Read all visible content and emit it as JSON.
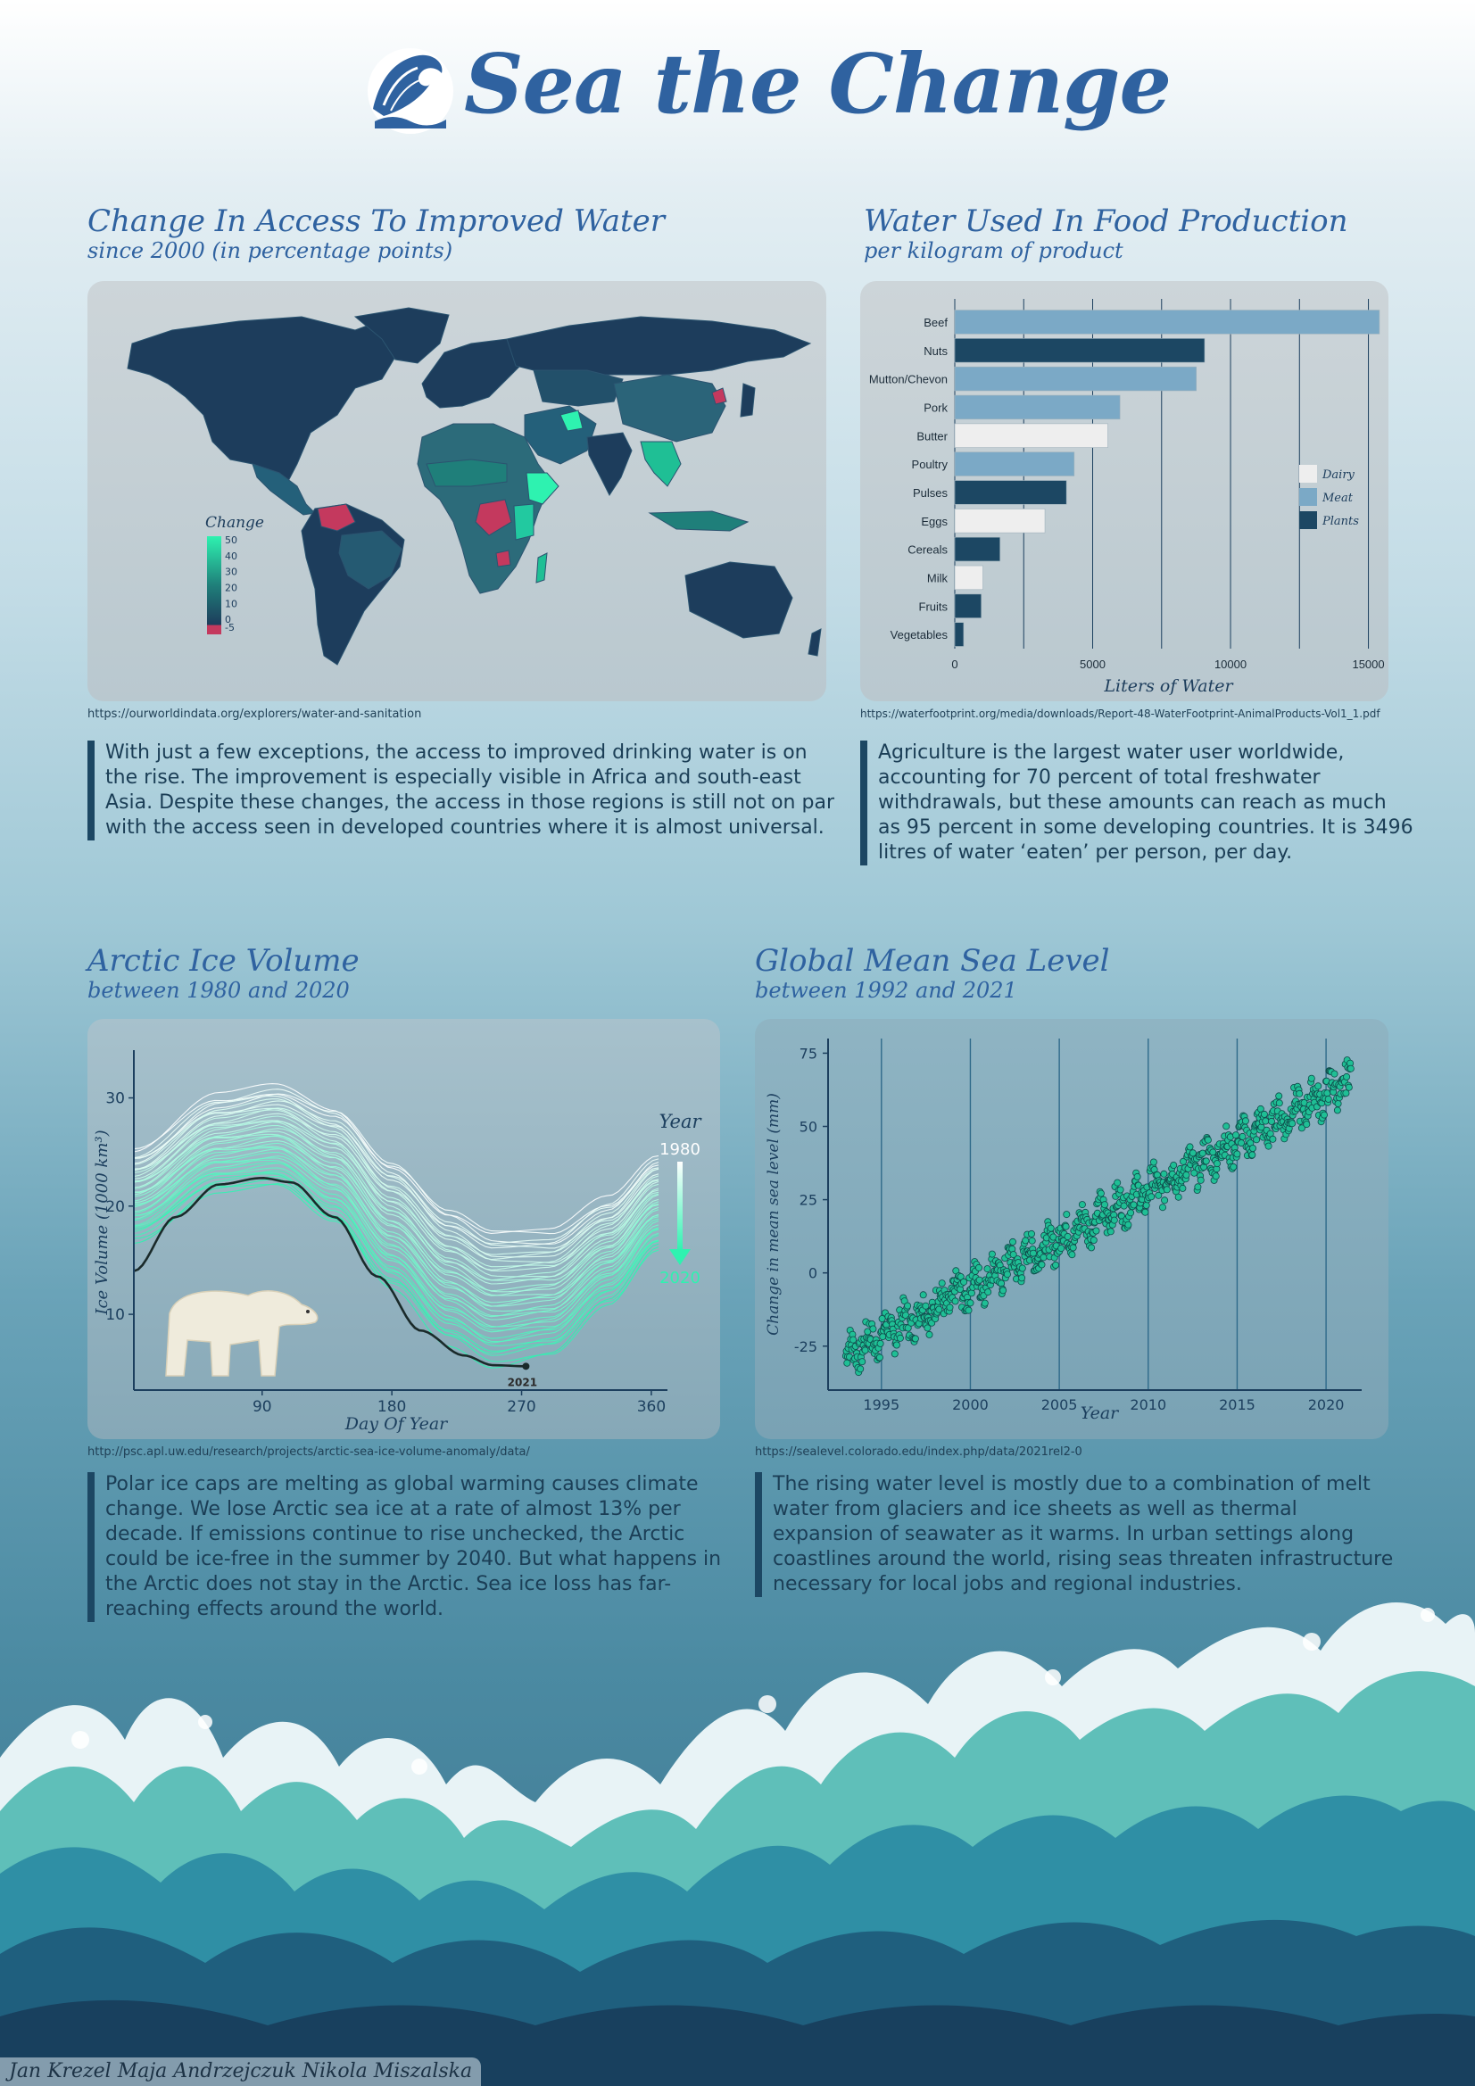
{
  "header": {
    "title": "Sea the Change"
  },
  "colors": {
    "title_blue": "#2f62a0",
    "dark_navy": "#1c3f5e",
    "teal": "#1fbf95",
    "mint": "#2ef2b0",
    "magenta": "#c4395e",
    "meat_blue": "#7ba9c6",
    "dairy": "#eeeeee",
    "plants": "#1c4763"
  },
  "sections": {
    "water_access": {
      "title": "Change In Access To Improved Water",
      "subtitle": "since 2000 (in percentage points)",
      "source": "https://ourworldindata.org/explorers/water-and-sanitation",
      "text": "With just a few exceptions, the access to improved drinking water is on the rise. The improvement is especially visible in Africa and south-east Asia. Despite these changes, the access in those regions is still not on par with the access seen in developed countries where it is almost universal."
    },
    "food_water": {
      "title": "Water Used In Food Production",
      "subtitle": "per kilogram of product",
      "source": "https://waterfootprint.org/media/downloads/Report-48-WaterFootprint-AnimalProducts-Vol1_1.pdf",
      "text": "Agriculture is the largest water user worldwide, accounting for 70 percent of total freshwater withdrawals, but these amounts can reach as much as 95 percent in some developing countries. It is 3496 litres of water ‘eaten’ per person, per day."
    },
    "arctic_ice": {
      "title": "Arctic Ice Volume",
      "subtitle": "between 1980 and 2020",
      "source": "http://psc.apl.uw.edu/research/projects/arctic-sea-ice-volume-anomaly/data/",
      "text": "Polar ice caps are melting as global warming causes climate change. We lose Arctic sea ice at a rate of almost 13% per decade. If emissions continue to rise unchecked, the Arctic could be ice-free in the summer by 2040. But what happens in the Arctic does not stay in the Arctic. Sea ice loss has far-reaching effects around the world."
    },
    "sea_level": {
      "title": "Global Mean Sea Level",
      "subtitle": "between 1992 and 2021",
      "source": "https://sealevel.colorado.edu/index.php/data/2021rel2-0",
      "text": "The rising water level is mostly due to a combination of melt water from glaciers and ice sheets as well as thermal expansion of seawater as it warms. In urban settings along coastlines around the world, rising seas threaten infrastructure necessary for local jobs and regional industries."
    }
  },
  "credits": "Jan Krezel Maja Andrzejczuk Nikola Miszalska",
  "chart_data": [
    {
      "type": "heatmap",
      "map": "world choropleth",
      "legend": {
        "title": "Change",
        "ticks": [
          "50",
          "40",
          "30",
          "20",
          "10",
          "0",
          "-5"
        ],
        "range": [
          -5,
          50
        ]
      }
    },
    {
      "type": "bar",
      "orientation": "horizontal",
      "categories": [
        "Beef",
        "Nuts",
        "Mutton/Chevon",
        "Pork",
        "Butter",
        "Poultry",
        "Pulses",
        "Eggs",
        "Cereals",
        "Milk",
        "Fruits",
        "Vegetables"
      ],
      "values": [
        15400,
        9060,
        8760,
        5990,
        5550,
        4330,
        4050,
        3270,
        1640,
        1020,
        960,
        320
      ],
      "groups": [
        "Meat",
        "Plants",
        "Meat",
        "Meat",
        "Dairy",
        "Meat",
        "Plants",
        "Dairy",
        "Plants",
        "Dairy",
        "Plants",
        "Plants"
      ],
      "legend": [
        "Dairy",
        "Meat",
        "Plants"
      ],
      "xlabel": "Liters of Water",
      "xticks": [
        "0",
        "5000",
        "10000",
        "15000"
      ],
      "xlim": [
        0,
        15500
      ],
      "grid": true
    },
    {
      "type": "line",
      "xlabel": "Day Of Year",
      "ylabel": "Ice Volume (1000 km³)",
      "xticks": [
        "90",
        "180",
        "270",
        "360"
      ],
      "yticks": [
        "10",
        "20",
        "30"
      ],
      "xlim": [
        1,
        365
      ],
      "ylim": [
        3,
        34
      ],
      "legend": {
        "title": "Year",
        "start": "1980",
        "end": "2020"
      },
      "highlight": {
        "label": "2021",
        "series": [
          [
            1,
            14
          ],
          [
            30,
            19
          ],
          [
            60,
            22
          ],
          [
            90,
            22.6
          ],
          [
            110,
            22.2
          ],
          [
            140,
            19
          ],
          [
            170,
            13.5
          ],
          [
            200,
            8.5
          ],
          [
            230,
            6.2
          ],
          [
            250,
            5.3
          ],
          [
            273,
            5.2
          ]
        ]
      },
      "envelope_1980": [
        [
          1,
          25
        ],
        [
          60,
          30
        ],
        [
          100,
          31
        ],
        [
          140,
          29
        ],
        [
          180,
          24
        ],
        [
          220,
          19.5
        ],
        [
          250,
          17.5
        ],
        [
          290,
          17.5
        ],
        [
          330,
          20.5
        ],
        [
          365,
          24.5
        ]
      ],
      "envelope_2020": [
        [
          1,
          17
        ],
        [
          60,
          21.5
        ],
        [
          100,
          22
        ],
        [
          140,
          18.5
        ],
        [
          180,
          12.5
        ],
        [
          220,
          7.5
        ],
        [
          250,
          5.5
        ],
        [
          290,
          6.5
        ],
        [
          330,
          11
        ],
        [
          365,
          16
        ]
      ]
    },
    {
      "type": "scatter",
      "xlabel": "Year",
      "ylabel": "Change in mean sea level (mm)",
      "xticks": [
        "1995",
        "2000",
        "2005",
        "2010",
        "2015",
        "2020"
      ],
      "yticks": [
        "-25",
        "0",
        "25",
        "50",
        "75"
      ],
      "xlim": [
        1992,
        2021.5
      ],
      "ylim": [
        -40,
        80
      ],
      "trend": {
        "start": [
          1993,
          -28
        ],
        "end": [
          2021.5,
          66
        ]
      },
      "grid": "vertical"
    }
  ]
}
